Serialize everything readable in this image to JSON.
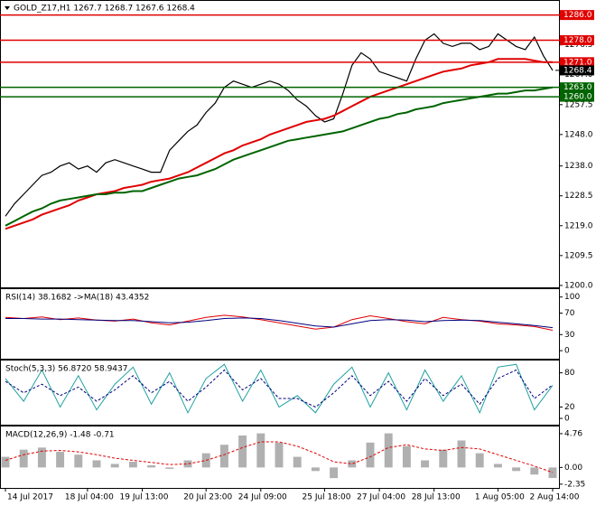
{
  "chart_data": [
    {
      "type": "line",
      "title": "GOLD_Z17,H1  1267.7 1268.7 1267.6 1268.4",
      "categories": [
        "14 Jul 2017",
        null,
        null,
        null,
        null,
        null,
        null,
        null,
        null,
        "18 Jul 04:00",
        null,
        null,
        null,
        null,
        null,
        "19 Jul 13:00",
        null,
        null,
        null,
        null,
        null,
        null,
        "20 Jul 23:00",
        null,
        null,
        null,
        null,
        null,
        "24 Jul 09:00",
        null,
        null,
        null,
        null,
        null,
        null,
        "25 Jul 18:00",
        null,
        null,
        null,
        null,
        null,
        "27 Jul 04:00",
        null,
        null,
        null,
        null,
        null,
        "28 Jul 13:00",
        null,
        null,
        null,
        null,
        null,
        null,
        "1 Aug 05:00",
        null,
        null,
        null,
        null,
        null,
        "2 Aug 14:00"
      ],
      "series": [
        {
          "color": "#000000",
          "values": [
            1222,
            1226,
            1229,
            1232,
            1235,
            1236,
            1238,
            1239,
            1237,
            1238,
            1236,
            1239,
            1240,
            1239,
            1238,
            1237,
            1236,
            1236,
            1243,
            1246,
            1249,
            1251,
            1255,
            1258,
            1263,
            1265,
            1264,
            1263,
            1264,
            1265,
            1264,
            1262,
            1259,
            1257,
            1254,
            1252,
            1253,
            1261,
            1270,
            1274,
            1272,
            1268,
            1267,
            1266,
            1265,
            1272,
            1278,
            1280,
            1277,
            1276,
            1277,
            1277,
            1275,
            1276,
            1280,
            1278,
            1276,
            1275,
            1279,
            1273,
            1268.4
          ]
        },
        {
          "color": "#e00000",
          "values": [
            1218,
            1219,
            1220,
            1221,
            1222.5,
            1223.5,
            1224.5,
            1225.5,
            1227,
            1228,
            1229,
            1229.5,
            1230,
            1231,
            1231.5,
            1232,
            1233,
            1233.5,
            1234,
            1235,
            1236,
            1237.5,
            1239,
            1240.5,
            1242,
            1243,
            1244.5,
            1245.5,
            1246.5,
            1248,
            1249,
            1250,
            1251,
            1252,
            1252.5,
            1253,
            1254,
            1255.5,
            1257,
            1258.5,
            1260,
            1261,
            1262,
            1263,
            1264,
            1265,
            1266,
            1267,
            1268,
            1268.5,
            1269,
            1270,
            1270.5,
            1271,
            1272,
            1272,
            1272,
            1272,
            1271.5,
            1271,
            1271
          ]
        },
        {
          "color": "#006400",
          "values": [
            1219,
            1220.5,
            1222,
            1223.5,
            1224.5,
            1226,
            1227,
            1227.5,
            1228,
            1228.5,
            1229,
            1229,
            1229.5,
            1229.5,
            1230,
            1230,
            1231,
            1232,
            1233,
            1234,
            1234.5,
            1235,
            1236,
            1237,
            1238.5,
            1240,
            1241,
            1242,
            1243,
            1244,
            1245,
            1246,
            1246.5,
            1247,
            1247.5,
            1248,
            1248.5,
            1249,
            1250,
            1251,
            1252,
            1253,
            1253.5,
            1254.5,
            1255,
            1256,
            1256.5,
            1257,
            1258,
            1258.5,
            1259,
            1259.5,
            1260,
            1260.5,
            1261,
            1261,
            1261.5,
            1262,
            1262,
            1262.5,
            1263
          ]
        }
      ],
      "levels": [
        {
          "value": 1286,
          "label": "1286.0",
          "color": "#e00000"
        },
        {
          "value": 1278,
          "label": "1278.0",
          "color": "#e00000"
        },
        {
          "value": 1271,
          "label": "1271.0",
          "color": "#e00000"
        },
        {
          "value": 1263,
          "label": "1263.0",
          "color": "#006400"
        },
        {
          "value": 1260,
          "label": "1260.0",
          "color": "#006400"
        }
      ],
      "current": {
        "value": 1268.4,
        "label": "1268.4"
      },
      "ylim": [
        1199.4,
        1290.2
      ],
      "yticks": [
        {
          "value": 1200,
          "label": "1200.0"
        },
        {
          "value": 1209.5,
          "label": "1209.5"
        },
        {
          "value": 1219,
          "label": "1219.0"
        },
        {
          "value": 1228.5,
          "label": "1228.5"
        },
        {
          "value": 1238,
          "label": "1238.0"
        },
        {
          "value": 1248,
          "label": "1248.0"
        },
        {
          "value": 1257.5,
          "label": "1257.5"
        },
        {
          "value": 1267,
          "label": "1267.0"
        },
        {
          "value": 1276.5,
          "label": "1276.5"
        }
      ]
    },
    {
      "type": "line",
      "title": "RSI(14) 38.1682 ->MA(18) 43.4352",
      "series": [
        {
          "color": "#e00000",
          "values": [
            62,
            60,
            63,
            58,
            61,
            57,
            55,
            59,
            52,
            48,
            55,
            62,
            66,
            63,
            58,
            52,
            46,
            40,
            44,
            58,
            65,
            60,
            54,
            50,
            62,
            58,
            55,
            50,
            48,
            45,
            38
          ]
        },
        {
          "color": "#000080",
          "values": [
            60,
            60,
            59,
            59,
            58,
            57,
            56,
            56,
            54,
            52,
            53,
            56,
            60,
            61,
            60,
            56,
            51,
            46,
            44,
            50,
            56,
            58,
            57,
            54,
            56,
            57,
            56,
            53,
            50,
            47,
            43
          ]
        }
      ],
      "ylim": [
        -15,
        113
      ],
      "yticks": [
        100,
        70,
        30,
        0
      ]
    },
    {
      "type": "line",
      "title": "Stoch(5,3,3) 56.8720 58.9437",
      "series": [
        {
          "color": "#20a0a0",
          "values": [
            70,
            30,
            85,
            20,
            75,
            15,
            60,
            90,
            25,
            80,
            10,
            70,
            95,
            30,
            85,
            20,
            40,
            10,
            60,
            90,
            20,
            80,
            15,
            85,
            30,
            75,
            10,
            90,
            95,
            15,
            58
          ]
        },
        {
          "color": "#000080",
          "dashed": true,
          "values": [
            65,
            45,
            60,
            40,
            55,
            30,
            50,
            75,
            45,
            65,
            30,
            55,
            85,
            50,
            70,
            35,
            35,
            20,
            45,
            75,
            40,
            65,
            30,
            70,
            40,
            60,
            25,
            70,
            85,
            35,
            59
          ]
        }
      ],
      "ylim": [
        -11,
        100
      ],
      "yticks": [
        80,
        20,
        0
      ]
    },
    {
      "type": "line",
      "title": "MACD(12,26,9) -1.48 -0.71",
      "series": [
        {
          "type": "bar",
          "color": "#b0b0b0",
          "values": [
            1.5,
            2.5,
            2.8,
            2.2,
            1.8,
            1.0,
            0.5,
            0.8,
            0.3,
            -0.2,
            1.0,
            2.0,
            3.2,
            4.5,
            4.8,
            3.5,
            1.5,
            -0.5,
            -1.5,
            1.0,
            3.5,
            4.8,
            3.0,
            1.0,
            2.5,
            3.8,
            2.0,
            0.5,
            -0.5,
            -1.0,
            -1.48
          ]
        },
        {
          "type": "line",
          "color": "#e00000",
          "dashed": true,
          "values": [
            1.0,
            1.8,
            2.3,
            2.4,
            2.2,
            1.8,
            1.3,
            1.0,
            0.7,
            0.4,
            0.5,
            1.0,
            1.8,
            2.8,
            3.6,
            3.6,
            3.0,
            2.0,
            0.8,
            0.5,
            1.5,
            2.8,
            3.2,
            2.6,
            2.4,
            2.8,
            2.6,
            1.8,
            1.0,
            0.2,
            -0.71
          ]
        }
      ],
      "ylim": [
        -2.88,
        5.64
      ],
      "yticks": [
        4.76,
        {
          "value": 0,
          "label": "0.00"
        },
        -2.35
      ]
    }
  ]
}
